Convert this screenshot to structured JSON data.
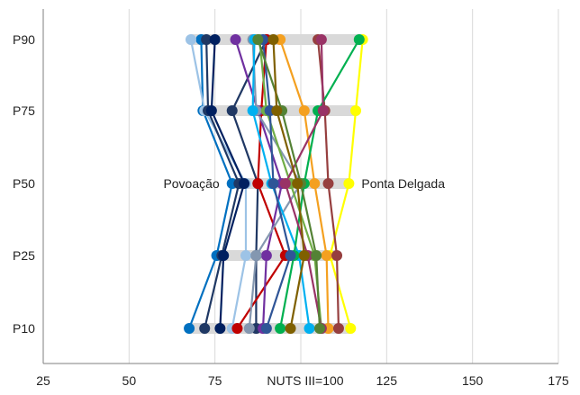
{
  "chart_data": {
    "type": "line",
    "xlabel": "NUTS III=100",
    "xlim": [
      25,
      175
    ],
    "x_ticks": [
      "25",
      "50",
      "75",
      "100",
      "125",
      "150",
      "175"
    ],
    "x_tick_values": [
      25,
      50,
      75,
      100,
      125,
      150,
      175
    ],
    "show_x_tick_at_100": false,
    "grid": true,
    "categories": [
      "P10",
      "P25",
      "P50",
      "P75",
      "P90"
    ],
    "range_bar_color": "#d9d9d9",
    "series": [
      {
        "name": "Povoação",
        "color": "#0070c0",
        "values": [
          67.5,
          75.5,
          80,
          71.5,
          71
        ]
      },
      {
        "name": "Ponta Delgada",
        "color": "#ffff00",
        "values": [
          114.5,
          108.5,
          114,
          116,
          118
        ]
      },
      {
        "color": "#9dc3e6",
        "values": [
          80,
          84,
          84,
          72,
          68
        ]
      },
      {
        "color": "#1f3864",
        "values": [
          72,
          77,
          82,
          73,
          72.5
        ]
      },
      {
        "color": "#002060",
        "values": [
          76.5,
          77.5,
          83.5,
          74,
          75
        ]
      },
      {
        "color": "#203864",
        "values": [
          87,
          87,
          87.5,
          80,
          90
        ]
      },
      {
        "color": "#c00000",
        "values": [
          81.5,
          95.5,
          87.5,
          88.5,
          90
        ]
      },
      {
        "color": "#7030a0",
        "values": [
          89,
          90,
          94.5,
          87.5,
          81
        ]
      },
      {
        "color": "#8497b0",
        "values": [
          85,
          87,
          100,
          87,
          86
        ]
      },
      {
        "color": "#00b0f0",
        "values": [
          102.5,
          99.5,
          91.5,
          86,
          86.5
        ]
      },
      {
        "color": "#70ad47",
        "values": [
          106,
          104,
          97,
          90,
          88
        ]
      },
      {
        "color": "#f4a020",
        "values": [
          108,
          107.5,
          104,
          101,
          94
        ]
      },
      {
        "color": "#963f3f",
        "values": [
          111,
          110.5,
          108,
          107,
          105
        ]
      },
      {
        "color": "#00b050",
        "values": [
          94,
          98,
          101,
          105,
          117
        ]
      },
      {
        "color": "#2f5597",
        "values": [
          90,
          97,
          92,
          91,
          89
        ]
      },
      {
        "color": "#993366",
        "values": [
          106,
          102,
          95.5,
          106.5,
          106
        ]
      },
      {
        "color": "#548235",
        "values": [
          105.5,
          104.5,
          100,
          94.5,
          87.5
        ]
      },
      {
        "color": "#7f6000",
        "values": [
          97,
          101,
          99,
          93,
          92
        ]
      }
    ],
    "annotations": [
      {
        "text": "Povoação",
        "attach_to": "Povoação",
        "category": "P50",
        "side": "left"
      },
      {
        "text": "Ponta Delgada",
        "attach_to": "Ponta Delgada",
        "category": "P50",
        "side": "right"
      }
    ]
  }
}
